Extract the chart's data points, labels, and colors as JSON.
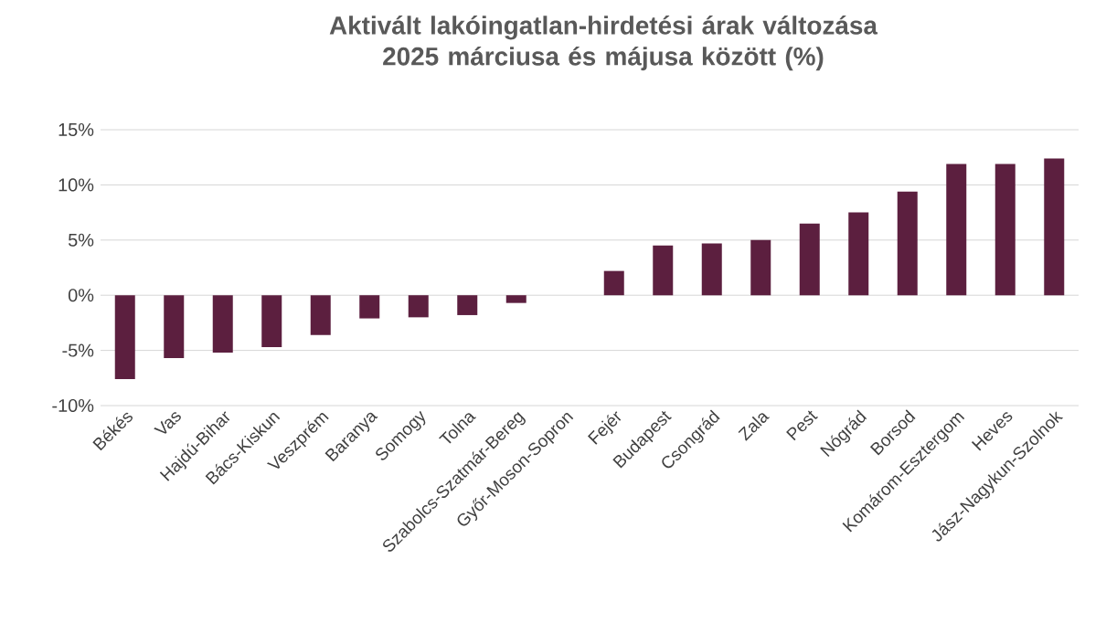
{
  "chart_data": {
    "type": "bar",
    "title": "Aktivált lakóingatlan-hirdetési árak változása 2025 márciusa és májusa között (%)",
    "categories": [
      "Békés",
      "Vas",
      "Hajdú-Bihar",
      "Bács-Kiskun",
      "Veszprém",
      "Baranya",
      "Somogy",
      "Tolna",
      "Szabolcs-Szatmár-Bereg",
      "Győr-Moson-Sopron",
      "Fejér",
      "Budapest",
      "Csongrád",
      "Zala",
      "Pest",
      "Nógrád",
      "Borsod",
      "Komárom-Esztergom",
      "Heves",
      "Jász-Nagykun-Szolnok"
    ],
    "values": [
      -7.6,
      -5.7,
      -5.2,
      -4.7,
      -3.6,
      -2.1,
      -2.0,
      -1.8,
      -0.7,
      0,
      2.2,
      4.5,
      4.7,
      5.0,
      6.5,
      7.5,
      9.4,
      11.9,
      11.9,
      12.4
    ],
    "color": "#5c1f3f",
    "ylim": [
      -10,
      15
    ],
    "yticks": [
      {
        "value": -10,
        "label": "-10%"
      },
      {
        "value": -5,
        "label": "-5%"
      },
      {
        "value": 0,
        "label": "0%"
      },
      {
        "value": 5,
        "label": "5%"
      },
      {
        "value": 10,
        "label": "10%"
      },
      {
        "value": 15,
        "label": "15%"
      }
    ],
    "grid": "y"
  }
}
